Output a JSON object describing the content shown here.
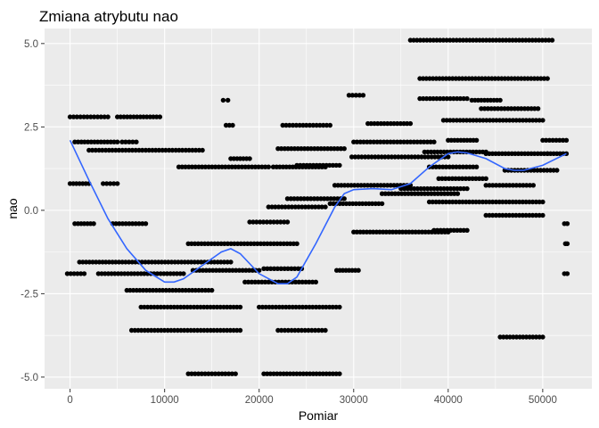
{
  "chart_data": {
    "type": "scatter",
    "title": "Zmiana atrybutu nao",
    "xlabel": "Pomiar",
    "ylabel": "nao",
    "xlim": [
      -2700,
      55200
    ],
    "ylim": [
      -5.35,
      5.45
    ],
    "x_ticks": [
      0,
      10000,
      20000,
      30000,
      40000,
      50000
    ],
    "x_tick_labels": [
      "0",
      "10000",
      "20000",
      "30000",
      "40000",
      "50000"
    ],
    "y_ticks": [
      -5.0,
      -2.5,
      0.0,
      2.5,
      5.0
    ],
    "y_tick_labels": [
      "-5.0",
      "-2.5",
      "0.0",
      "2.5",
      "5.0"
    ],
    "grid": true,
    "background": "#EBEBEB",
    "point_color": "#000000",
    "smooth_color": "#3366FF",
    "clusters": [
      {
        "y": 2.8,
        "x_from": 0,
        "x_to": 4000
      },
      {
        "y": 2.8,
        "x_from": 5000,
        "x_to": 9500
      },
      {
        "y": 2.05,
        "x_from": 500,
        "x_to": 5000
      },
      {
        "y": 2.05,
        "x_from": 5500,
        "x_to": 7000
      },
      {
        "y": 1.8,
        "x_from": 2000,
        "x_to": 14000
      },
      {
        "y": 1.3,
        "x_from": 11500,
        "x_to": 21000
      },
      {
        "y": 1.3,
        "x_from": 21500,
        "x_to": 27000
      },
      {
        "y": 0.8,
        "x_from": 0,
        "x_to": 2000
      },
      {
        "y": 0.8,
        "x_from": 3500,
        "x_to": 5000
      },
      {
        "y": -0.4,
        "x_from": 500,
        "x_to": 2500
      },
      {
        "y": -0.4,
        "x_from": 4500,
        "x_to": 8000
      },
      {
        "y": -1.55,
        "x_from": 1000,
        "x_to": 17000
      },
      {
        "y": -1.9,
        "x_from": -300,
        "x_to": 1500
      },
      {
        "y": -1.9,
        "x_from": 3000,
        "x_to": 12000
      },
      {
        "y": -2.4,
        "x_from": 6000,
        "x_to": 15000
      },
      {
        "y": -2.9,
        "x_from": 7500,
        "x_to": 18000
      },
      {
        "y": -3.6,
        "x_from": 6500,
        "x_to": 18000
      },
      {
        "y": -4.9,
        "x_from": 12500,
        "x_to": 17500
      },
      {
        "y": 3.3,
        "x_from": 16200,
        "x_to": 16700
      },
      {
        "y": 2.55,
        "x_from": 16500,
        "x_to": 17200
      },
      {
        "y": 1.55,
        "x_from": 17000,
        "x_to": 19000
      },
      {
        "y": -1.0,
        "x_from": 12500,
        "x_to": 24000
      },
      {
        "y": -1.8,
        "x_from": 13000,
        "x_to": 20000
      },
      {
        "y": -2.15,
        "x_from": 18500,
        "x_to": 26000
      },
      {
        "y": -2.9,
        "x_from": 20000,
        "x_to": 28500
      },
      {
        "y": -3.6,
        "x_from": 22000,
        "x_to": 27000
      },
      {
        "y": -4.9,
        "x_from": 20500,
        "x_to": 28500
      },
      {
        "y": 1.85,
        "x_from": 22000,
        "x_to": 29000
      },
      {
        "y": 1.35,
        "x_from": 24000,
        "x_to": 28500
      },
      {
        "y": 0.35,
        "x_from": 23000,
        "x_to": 29000
      },
      {
        "y": 0.1,
        "x_from": 21000,
        "x_to": 27000
      },
      {
        "y": -0.35,
        "x_from": 19000,
        "x_to": 23000
      },
      {
        "y": -1.75,
        "x_from": 20500,
        "x_to": 24500
      },
      {
        "y": 2.55,
        "x_from": 22500,
        "x_to": 27500
      },
      {
        "y": 0.75,
        "x_from": 28000,
        "x_to": 36000
      },
      {
        "y": 0.2,
        "x_from": 27500,
        "x_to": 33000
      },
      {
        "y": -0.65,
        "x_from": 30000,
        "x_to": 40000
      },
      {
        "y": 3.45,
        "x_from": 29500,
        "x_to": 31000
      },
      {
        "y": 2.05,
        "x_from": 30000,
        "x_to": 38500
      },
      {
        "y": 1.6,
        "x_from": 29800,
        "x_to": 40000
      },
      {
        "y": 2.6,
        "x_from": 31500,
        "x_to": 36000
      },
      {
        "y": -1.8,
        "x_from": 28200,
        "x_to": 30500
      },
      {
        "y": 0.65,
        "x_from": 35000,
        "x_to": 42000
      },
      {
        "y": 0.5,
        "x_from": 33000,
        "x_to": 41000
      },
      {
        "y": 1.3,
        "x_from": 38000,
        "x_to": 43000
      },
      {
        "y": 0.25,
        "x_from": 38000,
        "x_to": 50000
      },
      {
        "y": 1.75,
        "x_from": 37500,
        "x_to": 44000
      },
      {
        "y": 0.95,
        "x_from": 39000,
        "x_to": 44000
      },
      {
        "y": 5.1,
        "x_from": 36000,
        "x_to": 51000
      },
      {
        "y": 3.95,
        "x_from": 37000,
        "x_to": 50500
      },
      {
        "y": 3.35,
        "x_from": 37000,
        "x_to": 42000
      },
      {
        "y": 2.7,
        "x_from": 39500,
        "x_to": 50000
      },
      {
        "y": 2.1,
        "x_from": 40000,
        "x_to": 43000
      },
      {
        "y": 3.05,
        "x_from": 43500,
        "x_to": 49500
      },
      {
        "y": 3.3,
        "x_from": 42500,
        "x_to": 45500
      },
      {
        "y": 1.7,
        "x_from": 44000,
        "x_to": 50500
      },
      {
        "y": 1.2,
        "x_from": 46000,
        "x_to": 51500
      },
      {
        "y": 0.75,
        "x_from": 44000,
        "x_to": 49000
      },
      {
        "y": -0.15,
        "x_from": 44000,
        "x_to": 50000
      },
      {
        "y": -3.8,
        "x_from": 45500,
        "x_to": 50000
      },
      {
        "y": -0.6,
        "x_from": 38500,
        "x_to": 42000
      },
      {
        "y": 2.1,
        "x_from": 50000,
        "x_to": 52500
      },
      {
        "y": 1.7,
        "x_from": 50500,
        "x_to": 52500
      },
      {
        "y": -0.4,
        "x_from": 52300,
        "x_to": 52600
      },
      {
        "y": -1.9,
        "x_from": 52300,
        "x_to": 52600
      },
      {
        "y": -1.0,
        "x_from": 52400,
        "x_to": 52600
      }
    ],
    "smooth_line": {
      "x": [
        0,
        2000,
        4000,
        6000,
        8000,
        10000,
        11000,
        12000,
        14000,
        16000,
        17000,
        18000,
        20000,
        22000,
        23000,
        24000,
        26000,
        28000,
        29000,
        30000,
        32000,
        34000,
        36000,
        38000,
        40000,
        41000,
        42000,
        44000,
        46000,
        47000,
        48000,
        50000,
        52500
      ],
      "y": [
        2.1,
        0.9,
        -0.25,
        -1.15,
        -1.8,
        -2.15,
        -2.15,
        -2.05,
        -1.65,
        -1.25,
        -1.15,
        -1.3,
        -1.9,
        -2.2,
        -2.2,
        -2.0,
        -1.0,
        0.1,
        0.5,
        0.62,
        0.65,
        0.62,
        0.8,
        1.3,
        1.7,
        1.75,
        1.72,
        1.55,
        1.25,
        1.2,
        1.2,
        1.35,
        1.7
      ]
    }
  }
}
